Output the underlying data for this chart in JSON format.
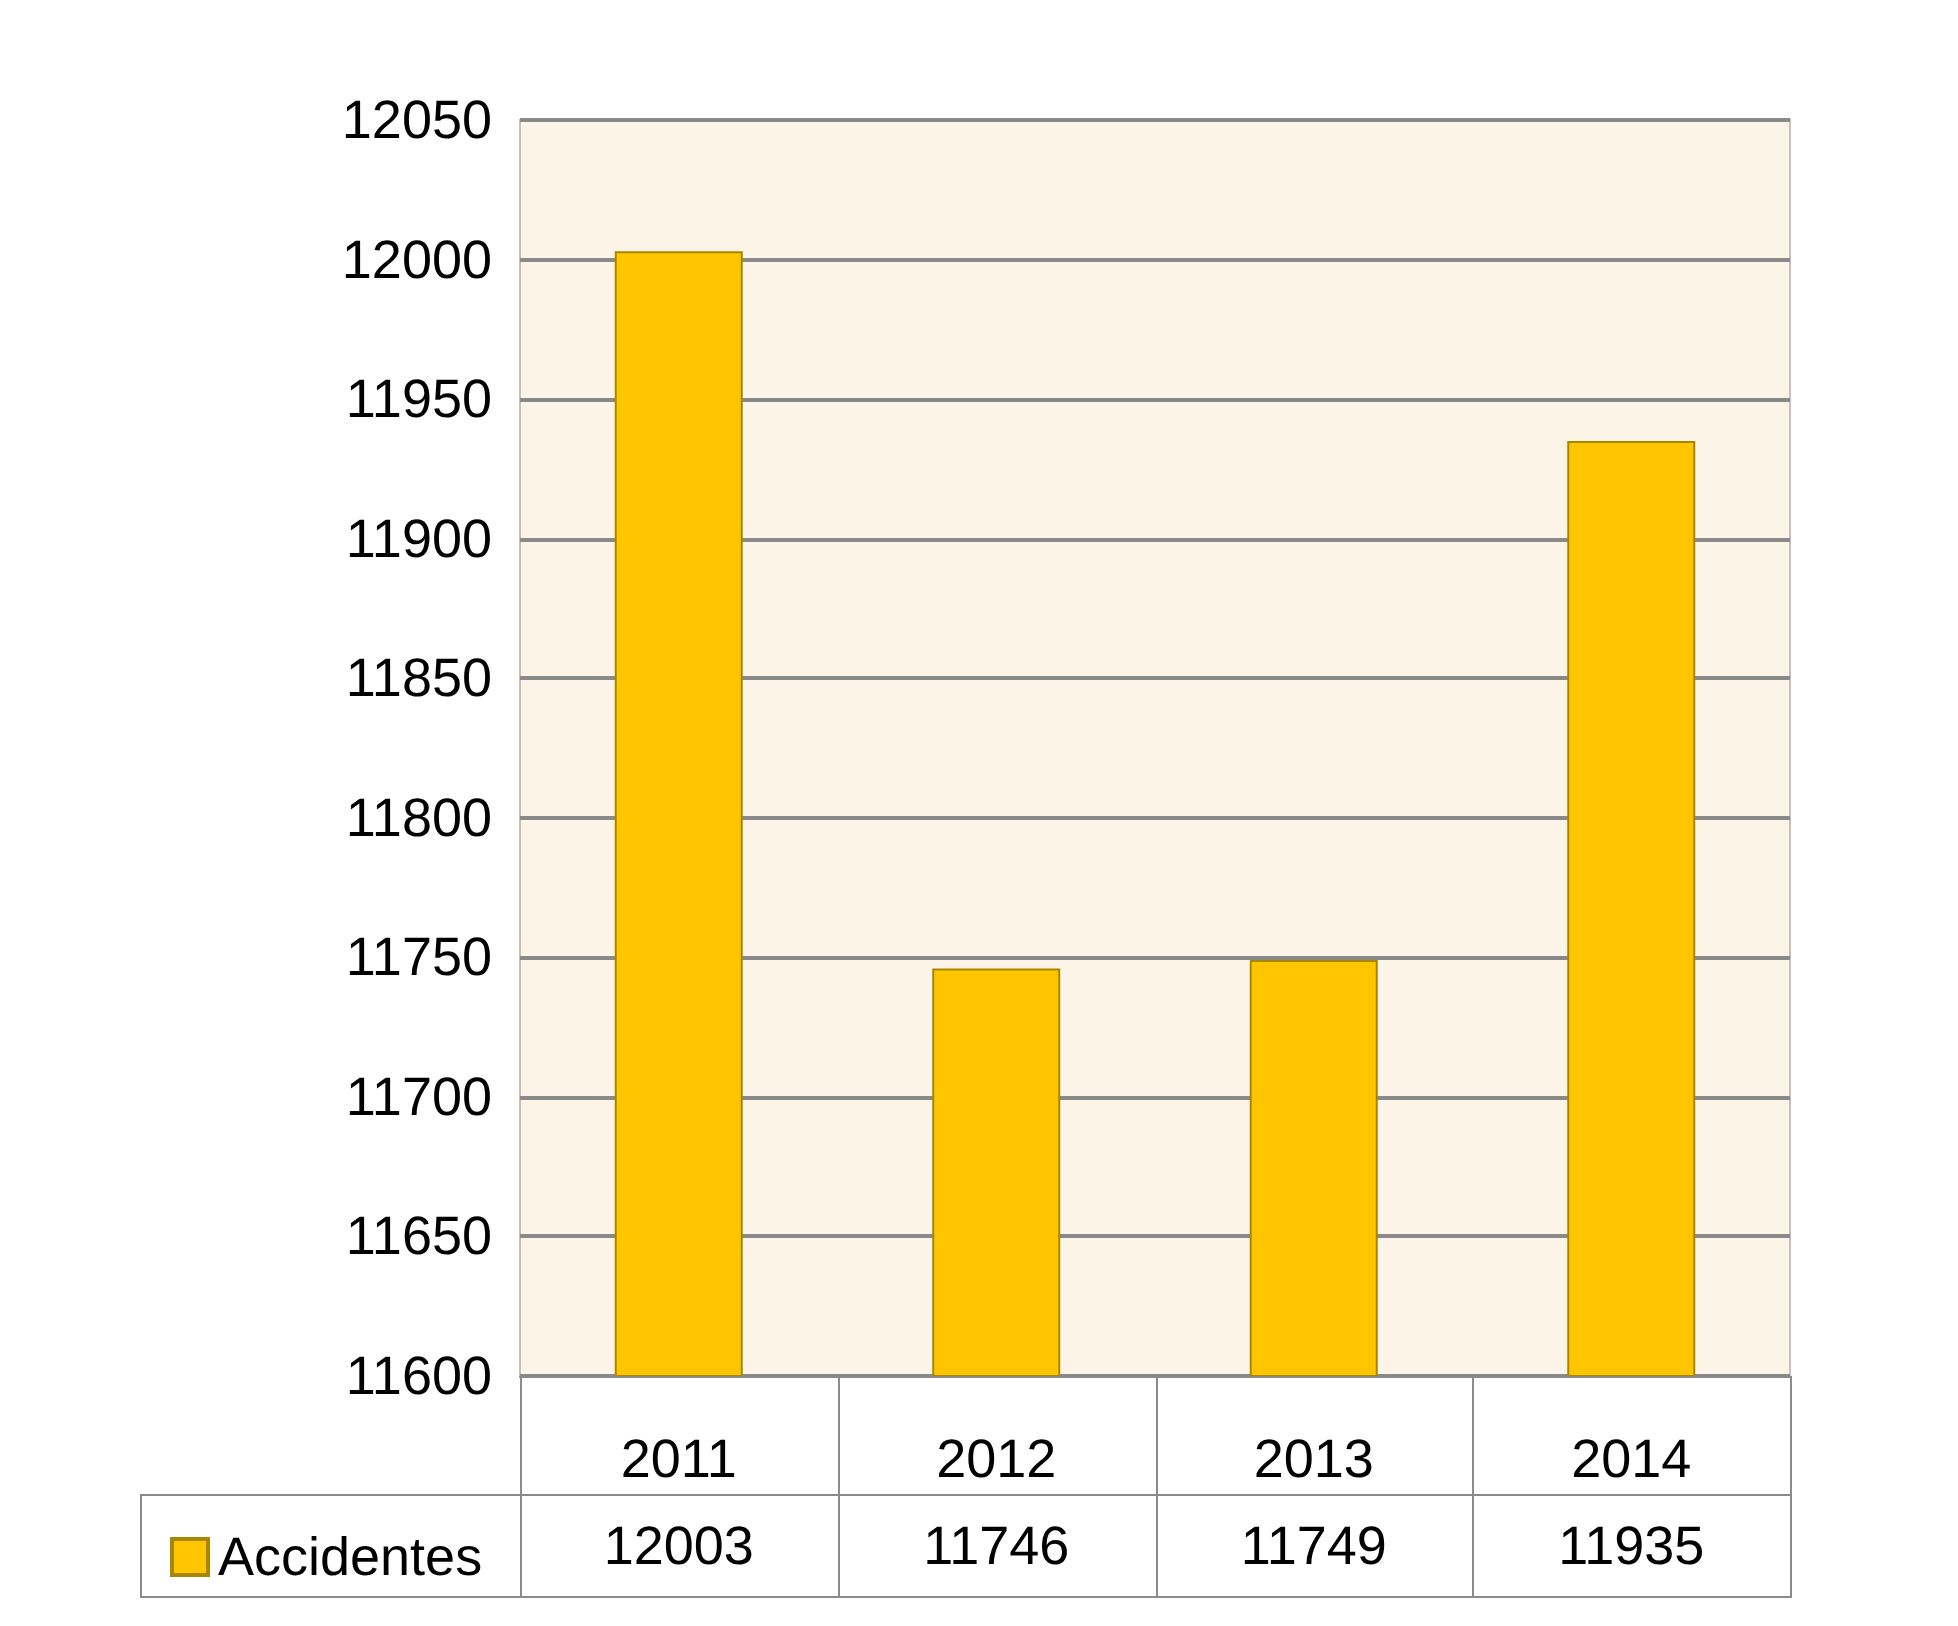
{
  "chart_data": {
    "type": "bar",
    "categories": [
      "2011",
      "2012",
      "2013",
      "2014"
    ],
    "series": [
      {
        "name": "Accidentes",
        "color": "#ffc600",
        "values": [
          12003,
          11746,
          11749,
          11935
        ]
      }
    ],
    "ylim": [
      11600,
      12050
    ],
    "yticks": [
      11600,
      11650,
      11700,
      11750,
      11800,
      11850,
      11900,
      11950,
      12000,
      12050
    ],
    "grid": "y",
    "legend": "bottom left",
    "data_labels": true
  }
}
